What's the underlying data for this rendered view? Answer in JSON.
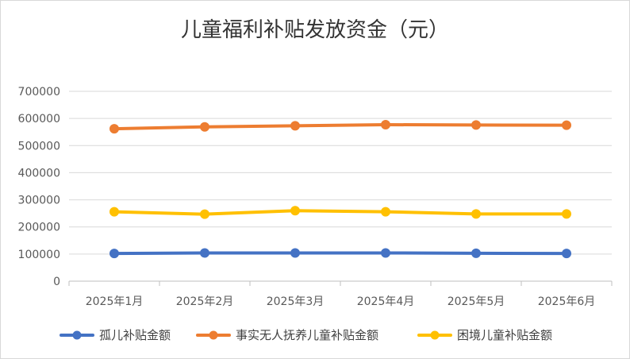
{
  "chart_data": {
    "type": "line",
    "title": "儿童福利补贴发放资金（元）",
    "xlabel": "",
    "ylabel": "",
    "categories": [
      "2025年1月",
      "2025年2月",
      "2025年3月",
      "2025年4月",
      "2025年5月",
      "2025年6月"
    ],
    "ylim": [
      0,
      700000
    ],
    "yticks": [
      0,
      100000,
      200000,
      300000,
      400000,
      500000,
      600000,
      700000
    ],
    "ytick_labels": [
      "0",
      "100000",
      "200000",
      "300000",
      "400000",
      "500000",
      "600000",
      "700000"
    ],
    "grid": true,
    "legend_position": "bottom",
    "series": [
      {
        "name": "孤儿补贴金额",
        "color": "#4472C4",
        "values": [
          102000,
          104000,
          104000,
          104000,
          103000,
          102000
        ]
      },
      {
        "name": "事实无人抚养儿童补贴金额",
        "color": "#ED7D31",
        "values": [
          562000,
          569000,
          573000,
          577000,
          576000,
          575000
        ]
      },
      {
        "name": "困境儿童补贴金额",
        "color": "#FFC000",
        "values": [
          256000,
          247000,
          260000,
          256000,
          248000,
          248000
        ]
      }
    ]
  }
}
